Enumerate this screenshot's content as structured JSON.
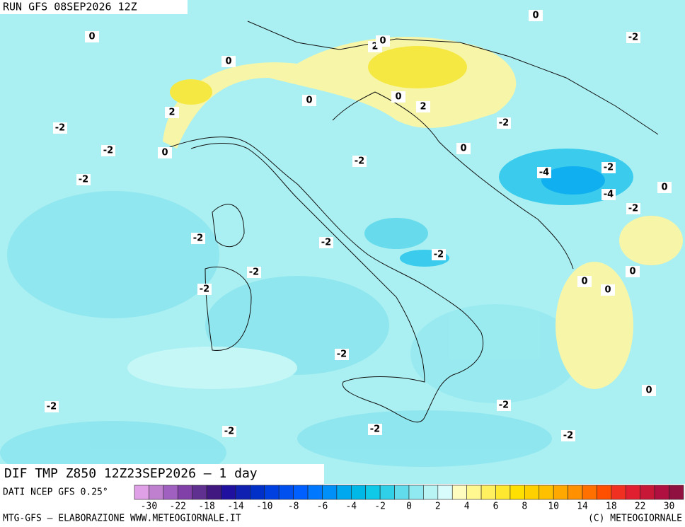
{
  "header": {
    "title": "RUN GFS 08SEP2026 12Z"
  },
  "map": {
    "contour_labels": [
      0,
      -2,
      0,
      2,
      0,
      0,
      0,
      0,
      2,
      2,
      -2,
      -2,
      -2,
      0,
      0,
      -2,
      -2,
      -4,
      -2,
      0,
      -4,
      -2,
      -2,
      -2,
      -2,
      -2,
      0,
      -2,
      0,
      0,
      -2,
      0,
      -2,
      -2,
      -2,
      -2,
      -2
    ]
  },
  "footer": {
    "product": "DIF TMP Z850 12Z23SEP2026 — 1 day",
    "source": "DATI NCEP GFS 0.25°",
    "credit_left": "MTG-GFS — ELABORAZIONE WWW.METEOGIORNALE.IT",
    "credit_right": "(C) METEOGIORNALE"
  },
  "colorbar": {
    "labels": [
      -30,
      -22,
      -18,
      -14,
      -10,
      -8,
      -6,
      -4,
      -2,
      0,
      2,
      4,
      6,
      8,
      10,
      14,
      18,
      22,
      30
    ],
    "colors": [
      "#e0a0e8",
      "#c080d0",
      "#a060c0",
      "#8040a8",
      "#603090",
      "#401880",
      "#2010a0",
      "#1020b0",
      "#0030c8",
      "#0040e0",
      "#0050f0",
      "#0060ff",
      "#0078ff",
      "#0090f8",
      "#00a8f0",
      "#00b8e8",
      "#10c8e8",
      "#30d0e8",
      "#60dcec",
      "#90e8f0",
      "#b8f4f4",
      "#d8fcfc",
      "#fffcc0",
      "#fff890",
      "#fff060",
      "#ffe830",
      "#ffe000",
      "#ffd000",
      "#ffc000",
      "#ffa800",
      "#ff9000",
      "#ff7000",
      "#ff5000",
      "#f03020",
      "#e02030",
      "#c81838",
      "#b01040",
      "#901040"
    ]
  }
}
